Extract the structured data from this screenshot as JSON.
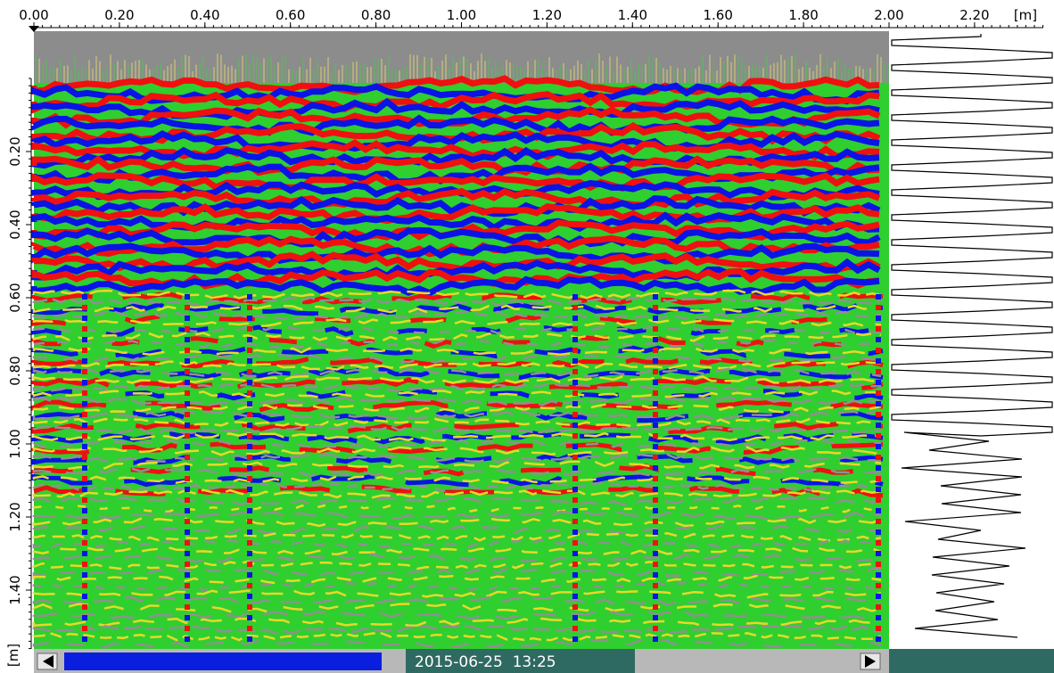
{
  "x_axis": {
    "ticks": [
      "0.00",
      "0.20",
      "0.40",
      "0.60",
      "0.80",
      "1.00",
      "1.20",
      "1.40",
      "1.60",
      "1.80",
      "2.00",
      "2.20"
    ],
    "unit": "[m]"
  },
  "y_axis": {
    "ticks": [
      "0.20",
      "0.40",
      "0.60",
      "0.80",
      "1.00",
      "1.20",
      "1.40"
    ],
    "unit": "[m]"
  },
  "status_bar": {
    "timestamp": "2015-06-25  13:25"
  }
}
